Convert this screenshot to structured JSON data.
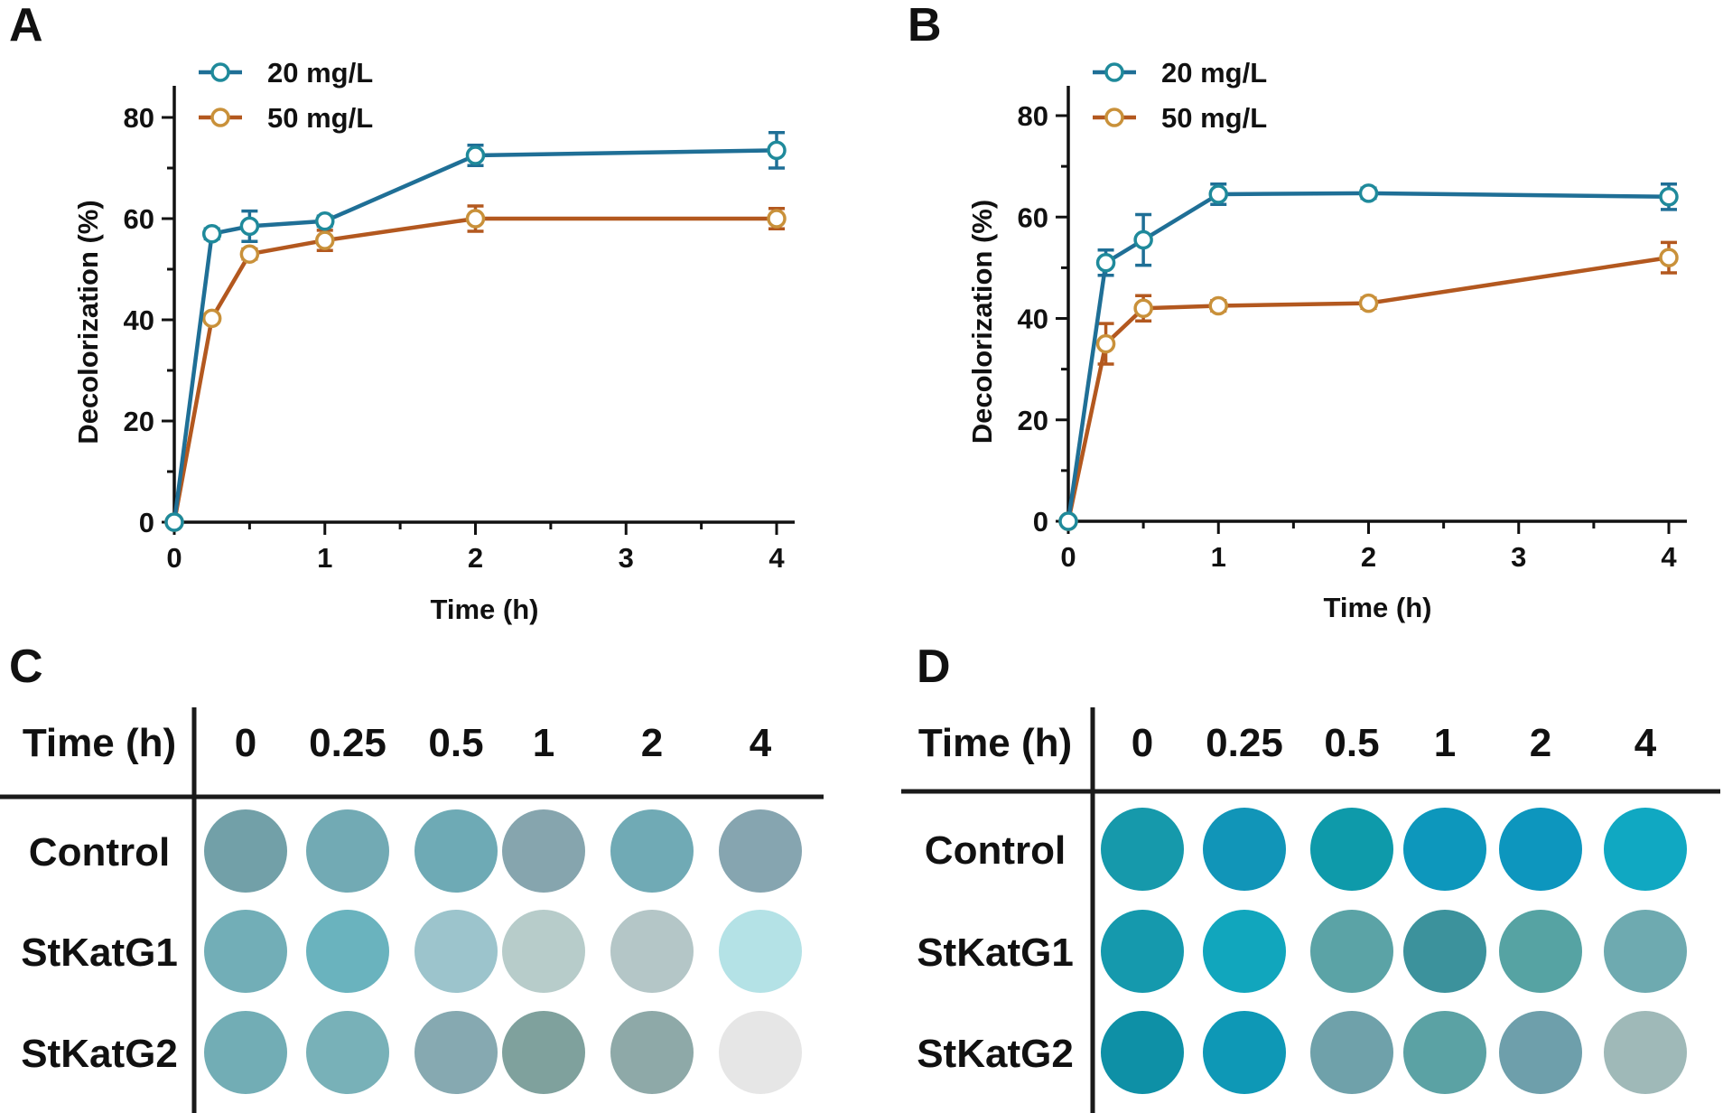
{
  "panels": {
    "A": "A",
    "B": "B",
    "C": "C",
    "D": "D"
  },
  "colors": {
    "series1": "#1f6f96",
    "series2": "#b3581f",
    "series1_marker": "#1f8a9b",
    "series2_marker": "#c9913a"
  },
  "chart_data": [
    {
      "type": "line",
      "panel": "A",
      "title": "",
      "xlabel": "Time (h)",
      "ylabel": "Decolorization (%)",
      "xlim": [
        0,
        4.1
      ],
      "ylim": [
        0,
        85
      ],
      "xticks": [
        0,
        1,
        2,
        3,
        4
      ],
      "yticks": [
        0,
        20,
        40,
        60,
        80
      ],
      "x": [
        0,
        0.25,
        0.5,
        1,
        2,
        4
      ],
      "series": [
        {
          "name": "20 mg/L",
          "values": [
            0,
            57,
            58.5,
            59.5,
            72.5,
            73.5
          ],
          "errors": [
            0,
            1,
            3,
            1,
            2,
            3.5
          ]
        },
        {
          "name": "50 mg/L",
          "values": [
            0,
            40.3,
            53,
            55.7,
            60,
            60
          ],
          "errors": [
            0,
            0.5,
            1,
            2,
            2.5,
            2
          ]
        }
      ],
      "legend_position": "top-left"
    },
    {
      "type": "line",
      "panel": "B",
      "title": "",
      "xlabel": "Time (h)",
      "ylabel": "Decolorization (%)",
      "xlim": [
        0,
        4.1
      ],
      "ylim": [
        0,
        85
      ],
      "xticks": [
        0,
        1,
        2,
        3,
        4
      ],
      "yticks": [
        0,
        20,
        40,
        60,
        80
      ],
      "x": [
        0,
        0.25,
        0.5,
        1,
        2,
        4
      ],
      "series": [
        {
          "name": "20 mg/L",
          "values": [
            0,
            51,
            55.5,
            64.5,
            64.7,
            64
          ],
          "errors": [
            0,
            2.5,
            5,
            2,
            1,
            2.5
          ]
        },
        {
          "name": "50 mg/L",
          "values": [
            0,
            35,
            42,
            42.5,
            43,
            52
          ],
          "errors": [
            0,
            4,
            2.5,
            1,
            1,
            3
          ]
        }
      ],
      "legend_position": "top-left"
    }
  ],
  "grid_C": {
    "header_label": "Time (h)",
    "times": [
      "0",
      "0.25",
      "0.5",
      "1",
      "2",
      "4"
    ],
    "rows": [
      {
        "label": "Control",
        "colors": [
          "#72a0a8",
          "#72aab4",
          "#6eaab5",
          "#86a5ae",
          "#70aab5",
          "#86a5b0"
        ]
      },
      {
        "label": "StKatG1",
        "colors": [
          "#72aeb7",
          "#6ab3be",
          "#9cc4cc",
          "#b7ccca",
          "#b4c6c7",
          "#b4e2e6"
        ]
      },
      {
        "label": "StKatG2",
        "colors": [
          "#72adb5",
          "#78b1b8",
          "#86a9b1",
          "#7fa19d",
          "#8ea9a8",
          "#e6e6e6"
        ]
      }
    ]
  },
  "grid_D": {
    "header_label": "Time (h)",
    "times": [
      "0",
      "0.25",
      "0.5",
      "1",
      "2",
      "4"
    ],
    "rows": [
      {
        "label": "Control",
        "colors": [
          "#1699ab",
          "#1195b8",
          "#0e9aaa",
          "#0d97bc",
          "#0d96be",
          "#10a8c2"
        ]
      },
      {
        "label": "StKatG1",
        "colors": [
          "#1599ad",
          "#11a6bd",
          "#5ba3a6",
          "#3c929c",
          "#56a3a3",
          "#6eaab0"
        ]
      },
      {
        "label": "StKatG2",
        "colors": [
          "#0e90a6",
          "#0e98b6",
          "#6fa1aa",
          "#5ba2a4",
          "#6e9fab",
          "#9fb9b8"
        ]
      }
    ]
  }
}
